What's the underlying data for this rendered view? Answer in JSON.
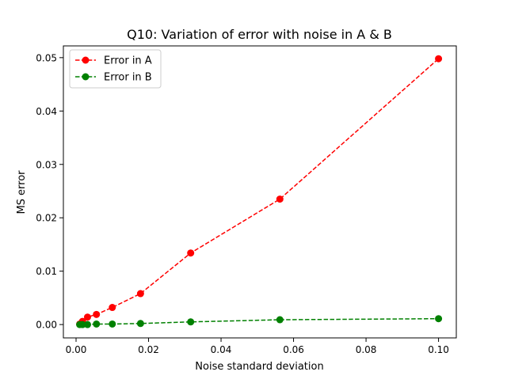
{
  "chart_data": {
    "type": "line",
    "title": "Q10: Variation of error with noise in A & B",
    "xlabel": "Noise standard deviation",
    "ylabel": "MS error",
    "xlim": [
      -0.0035,
      0.1049
    ],
    "ylim": [
      -0.0025,
      0.0522
    ],
    "xticks": [
      0.0,
      0.02,
      0.04,
      0.06,
      0.08,
      0.1
    ],
    "xtick_labels": [
      "0.00",
      "0.02",
      "0.04",
      "0.06",
      "0.08",
      "0.10"
    ],
    "yticks": [
      0.0,
      0.01,
      0.02,
      0.03,
      0.04,
      0.05
    ],
    "ytick_labels": [
      "0.00",
      "0.01",
      "0.02",
      "0.03",
      "0.04",
      "0.05"
    ],
    "grid": false,
    "legend_position": "top-left",
    "series": [
      {
        "name": "Error in A",
        "color": "#ff0000",
        "line_style": "dashed",
        "marker": "circle",
        "x": [
          0.001,
          0.00178,
          0.00316,
          0.00562,
          0.01,
          0.01778,
          0.03162,
          0.05623,
          0.1
        ],
        "y": [
          0.0001,
          0.0006,
          0.0014,
          0.0019,
          0.0032,
          0.0058,
          0.0134,
          0.0235,
          0.0498
        ]
      },
      {
        "name": "Error in B",
        "color": "#008000",
        "line_style": "dashed",
        "marker": "circle",
        "x": [
          0.001,
          0.00178,
          0.00316,
          0.00562,
          0.01,
          0.01778,
          0.03162,
          0.05623,
          0.1
        ],
        "y": [
          0.0,
          0.0,
          0.0,
          0.0001,
          0.0001,
          0.0002,
          0.0005,
          0.0009,
          0.0011
        ]
      }
    ]
  }
}
